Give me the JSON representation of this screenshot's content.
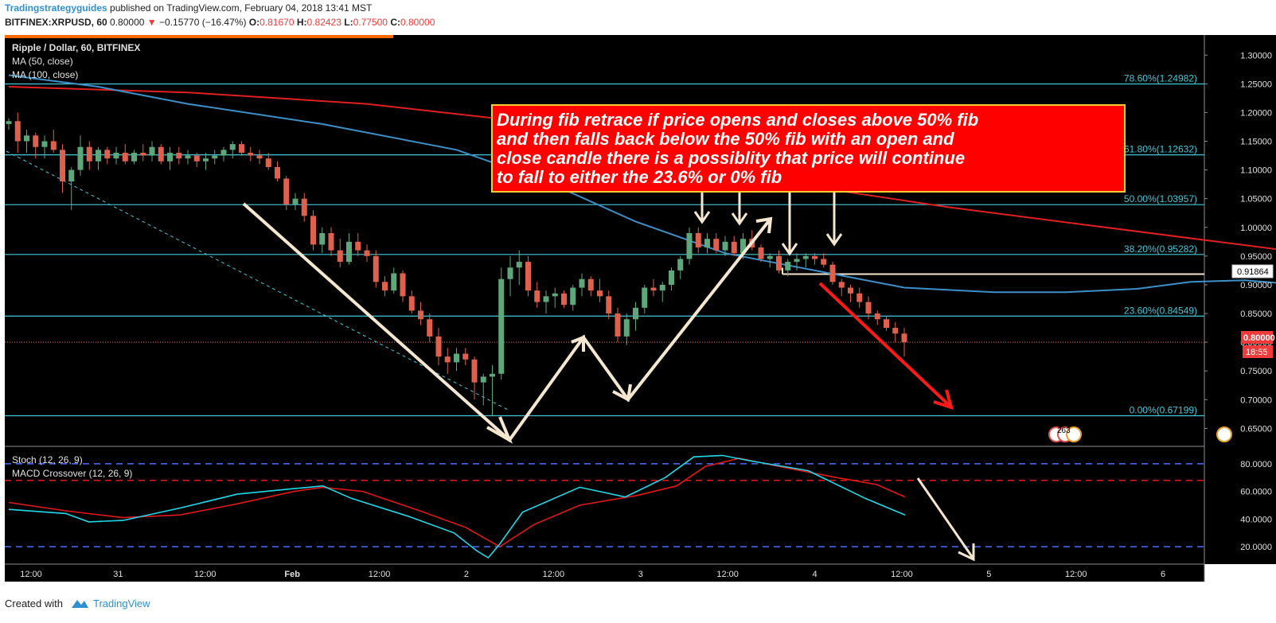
{
  "header": {
    "author": "Tradingstrategyguides",
    "published_text": "published on TradingView.com, February 04, 2018 13:41 MST",
    "symbol": "BITFINEX:XRPUSD, 60",
    "last": "0.80000",
    "change": "−0.15770 (−16.47%)",
    "o_label": "O:",
    "o_val": "0.81670",
    "h_label": "H:",
    "h_val": "0.82423",
    "l_label": "L:",
    "l_val": "0.77500",
    "c_label": "C:",
    "c_val": "0.80000"
  },
  "legend": {
    "title": "Ripple / Dollar, 60, BITFINEX",
    "ma50": "MA (50, close)",
    "ma100": "MA (100, close)",
    "stoch": "Stoch (12, 26, 9)",
    "macd": "MACD Crossover (12, 26, 9)"
  },
  "annotation": {
    "lines": [
      "During fib retrace if price opens and closes above 50% fib",
      "and then falls back below the 50% fib with an open and",
      "close candle there is a possiblity that price will continue",
      "to fall to either the 23.6% or 0% fib"
    ]
  },
  "price_tags": {
    "level": "0.91864",
    "last": "0.80000",
    "timer": "18:55"
  },
  "markers": {
    "events_count": "263"
  },
  "footer": {
    "created_with": "Created with",
    "brand": "TradingView"
  },
  "colors": {
    "background": "#000000",
    "fib_line": "#44c8d8",
    "ma50": "#3d8fc8",
    "ma100": "#e02020",
    "candle_up": "#5ea77d",
    "candle_down": "#e0604e",
    "stoch_k": "#22d8e8",
    "stoch_d": "#e01818",
    "arrow": "#f5e6d0",
    "arrow_red": "#ff1a1a",
    "annotation_bg": "#ff0000"
  },
  "chart_data": {
    "type": "candlestick",
    "title": "Ripple / Dollar, 60, BITFINEX",
    "price_axis": {
      "ticks": [
        "1.30000",
        "1.25000",
        "1.20000",
        "1.15000",
        "1.10000",
        "1.05000",
        "1.00000",
        "0.95000",
        "0.90000",
        "0.85000",
        "0.80000",
        "0.75000",
        "0.70000",
        "0.65000"
      ],
      "ylim": [
        0.62,
        1.335
      ]
    },
    "time_axis": {
      "labels": [
        "12:00",
        "31",
        "12:00",
        "Feb",
        "12:00",
        "2",
        "12:00",
        "3",
        "12:00",
        "4",
        "12:00",
        "5",
        "12:00",
        "6"
      ],
      "range_hours": [
        0,
        132
      ]
    },
    "fib_levels": [
      {
        "label": "78.60%(1.24982)",
        "value": 1.24982
      },
      {
        "label": "61.80%(1.12632)",
        "value": 1.12632
      },
      {
        "label": "50.00%(1.03957)",
        "value": 1.03957
      },
      {
        "label": "38.20%(0.95282)",
        "value": 0.95282
      },
      {
        "label": "23.60%(0.84549)",
        "value": 0.84549
      },
      {
        "label": "0.00%(0.67199)",
        "value": 0.67199
      }
    ],
    "horizontal_level": 0.91864,
    "last_price": 0.8,
    "ohlc": [
      [
        1.18,
        1.19,
        1.17,
        1.185
      ],
      [
        1.185,
        1.2,
        1.13,
        1.15
      ],
      [
        1.15,
        1.17,
        1.13,
        1.16
      ],
      [
        1.16,
        1.165,
        1.12,
        1.14
      ],
      [
        1.14,
        1.16,
        1.12,
        1.15
      ],
      [
        1.15,
        1.17,
        1.13,
        1.135
      ],
      [
        1.135,
        1.145,
        1.06,
        1.08
      ],
      [
        1.08,
        1.105,
        1.03,
        1.1
      ],
      [
        1.1,
        1.16,
        1.09,
        1.14
      ],
      [
        1.14,
        1.15,
        1.1,
        1.115
      ],
      [
        1.115,
        1.14,
        1.1,
        1.135
      ],
      [
        1.135,
        1.14,
        1.11,
        1.12
      ],
      [
        1.12,
        1.14,
        1.11,
        1.13
      ],
      [
        1.13,
        1.145,
        1.11,
        1.115
      ],
      [
        1.115,
        1.135,
        1.11,
        1.13
      ],
      [
        1.13,
        1.145,
        1.115,
        1.125
      ],
      [
        1.125,
        1.15,
        1.115,
        1.14
      ],
      [
        1.14,
        1.145,
        1.11,
        1.115
      ],
      [
        1.115,
        1.14,
        1.1,
        1.13
      ],
      [
        1.13,
        1.14,
        1.11,
        1.12
      ],
      [
        1.12,
        1.135,
        1.11,
        1.125
      ],
      [
        1.125,
        1.13,
        1.105,
        1.115
      ],
      [
        1.115,
        1.13,
        1.1,
        1.12
      ],
      [
        1.12,
        1.135,
        1.11,
        1.125
      ],
      [
        1.125,
        1.14,
        1.115,
        1.135
      ],
      [
        1.135,
        1.15,
        1.12,
        1.145
      ],
      [
        1.145,
        1.15,
        1.125,
        1.13
      ],
      [
        1.13,
        1.14,
        1.115,
        1.125
      ],
      [
        1.125,
        1.135,
        1.11,
        1.12
      ],
      [
        1.12,
        1.13,
        1.1,
        1.105
      ],
      [
        1.105,
        1.115,
        1.08,
        1.085
      ],
      [
        1.085,
        1.09,
        1.03,
        1.04
      ],
      [
        1.04,
        1.06,
        1.03,
        1.05
      ],
      [
        1.05,
        1.06,
        1.01,
        1.02
      ],
      [
        1.02,
        1.03,
        0.96,
        0.97
      ],
      [
        0.97,
        1.0,
        0.955,
        0.99
      ],
      [
        0.99,
        1.0,
        0.95,
        0.96
      ],
      [
        0.96,
        0.98,
        0.93,
        0.94
      ],
      [
        0.94,
        0.99,
        0.935,
        0.975
      ],
      [
        0.975,
        0.99,
        0.95,
        0.96
      ],
      [
        0.96,
        0.97,
        0.94,
        0.95
      ],
      [
        0.95,
        0.96,
        0.895,
        0.905
      ],
      [
        0.905,
        0.915,
        0.88,
        0.89
      ],
      [
        0.89,
        0.93,
        0.885,
        0.92
      ],
      [
        0.92,
        0.925,
        0.87,
        0.88
      ],
      [
        0.88,
        0.89,
        0.85,
        0.855
      ],
      [
        0.855,
        0.87,
        0.83,
        0.84
      ],
      [
        0.84,
        0.85,
        0.8,
        0.81
      ],
      [
        0.81,
        0.825,
        0.76,
        0.775
      ],
      [
        0.775,
        0.79,
        0.745,
        0.765
      ],
      [
        0.765,
        0.79,
        0.75,
        0.78
      ],
      [
        0.78,
        0.79,
        0.76,
        0.77
      ],
      [
        0.77,
        0.775,
        0.7,
        0.73
      ],
      [
        0.73,
        0.745,
        0.69,
        0.74
      ],
      [
        0.74,
        0.76,
        0.672,
        0.745
      ],
      [
        0.745,
        0.93,
        0.735,
        0.91
      ],
      [
        0.91,
        0.95,
        0.88,
        0.93
      ],
      [
        0.93,
        0.96,
        0.9,
        0.94
      ],
      [
        0.94,
        0.95,
        0.88,
        0.89
      ],
      [
        0.89,
        0.905,
        0.86,
        0.87
      ],
      [
        0.87,
        0.89,
        0.85,
        0.88
      ],
      [
        0.88,
        0.895,
        0.86,
        0.885
      ],
      [
        0.885,
        0.89,
        0.86,
        0.865
      ],
      [
        0.865,
        0.9,
        0.855,
        0.895
      ],
      [
        0.895,
        0.92,
        0.88,
        0.91
      ],
      [
        0.91,
        0.915,
        0.88,
        0.89
      ],
      [
        0.89,
        0.91,
        0.87,
        0.88
      ],
      [
        0.88,
        0.89,
        0.84,
        0.85
      ],
      [
        0.85,
        0.86,
        0.8,
        0.81
      ],
      [
        0.81,
        0.85,
        0.795,
        0.84
      ],
      [
        0.84,
        0.87,
        0.82,
        0.86
      ],
      [
        0.86,
        0.9,
        0.85,
        0.895
      ],
      [
        0.895,
        0.91,
        0.88,
        0.89
      ],
      [
        0.89,
        0.905,
        0.87,
        0.9
      ],
      [
        0.9,
        0.93,
        0.89,
        0.925
      ],
      [
        0.925,
        0.95,
        0.91,
        0.945
      ],
      [
        0.945,
        1.0,
        0.935,
        0.99
      ],
      [
        0.99,
        1.0,
        0.955,
        0.965
      ],
      [
        0.965,
        0.99,
        0.955,
        0.98
      ],
      [
        0.98,
        0.99,
        0.955,
        0.96
      ],
      [
        0.96,
        0.985,
        0.95,
        0.975
      ],
      [
        0.975,
        0.985,
        0.95,
        0.955
      ],
      [
        0.955,
        0.99,
        0.945,
        0.98
      ],
      [
        0.98,
        0.995,
        0.96,
        0.965
      ],
      [
        0.965,
        0.97,
        0.94,
        0.945
      ],
      [
        0.945,
        0.955,
        0.93,
        0.95
      ],
      [
        0.95,
        0.96,
        0.92,
        0.925
      ],
      [
        0.925,
        0.945,
        0.915,
        0.94
      ],
      [
        0.94,
        0.955,
        0.925,
        0.945
      ],
      [
        0.945,
        0.955,
        0.93,
        0.95
      ],
      [
        0.95,
        0.955,
        0.935,
        0.945
      ],
      [
        0.945,
        0.955,
        0.93,
        0.935
      ],
      [
        0.935,
        0.94,
        0.9,
        0.905
      ],
      [
        0.905,
        0.91,
        0.88,
        0.895
      ],
      [
        0.895,
        0.9,
        0.87,
        0.885
      ],
      [
        0.885,
        0.895,
        0.86,
        0.87
      ],
      [
        0.87,
        0.88,
        0.84,
        0.85
      ],
      [
        0.85,
        0.855,
        0.83,
        0.84
      ],
      [
        0.84,
        0.845,
        0.82,
        0.825
      ],
      [
        0.825,
        0.835,
        0.8,
        0.815
      ],
      [
        0.815,
        0.825,
        0.775,
        0.8
      ]
    ],
    "ma50": [
      [
        0,
        1.265
      ],
      [
        10,
        1.245
      ],
      [
        20,
        1.215
      ],
      [
        35,
        1.18
      ],
      [
        50,
        1.135
      ],
      [
        60,
        1.08
      ],
      [
        70,
        1.01
      ],
      [
        80,
        0.955
      ],
      [
        90,
        0.925
      ],
      [
        100,
        0.895
      ],
      [
        110,
        0.887
      ],
      [
        118,
        0.887
      ],
      [
        126,
        0.893
      ],
      [
        132,
        0.905
      ],
      [
        138,
        0.908
      ],
      [
        142,
        0.903
      ]
    ],
    "ma100": [
      [
        0,
        1.245
      ],
      [
        20,
        1.235
      ],
      [
        40,
        1.215
      ],
      [
        60,
        1.18
      ],
      [
        75,
        1.13
      ],
      [
        90,
        1.07
      ],
      [
        105,
        1.035
      ],
      [
        120,
        1.005
      ],
      [
        135,
        0.975
      ],
      [
        145,
        0.955
      ],
      [
        150,
        0.94
      ]
    ],
    "oscillator": {
      "ticks": [
        "80.0000",
        "60.0000",
        "40.0000",
        "20.0000"
      ],
      "ylim": [
        8,
        92
      ],
      "upper_band": 80,
      "red_band": 68,
      "lower_band": 20,
      "k_line": [
        [
          0,
          47
        ],
        [
          10,
          44
        ],
        [
          14,
          38
        ],
        [
          20,
          39
        ],
        [
          30,
          48
        ],
        [
          40,
          58
        ],
        [
          50,
          62
        ],
        [
          55,
          64
        ],
        [
          60,
          55
        ],
        [
          70,
          42
        ],
        [
          78,
          30
        ],
        [
          82,
          17
        ],
        [
          84,
          12
        ],
        [
          86,
          22
        ],
        [
          90,
          45
        ],
        [
          100,
          63
        ],
        [
          108,
          56
        ],
        [
          115,
          70
        ],
        [
          120,
          85
        ],
        [
          125,
          86
        ],
        [
          130,
          82
        ],
        [
          140,
          75
        ],
        [
          150,
          55
        ],
        [
          157,
          43
        ]
      ],
      "d_line": [
        [
          0,
          52
        ],
        [
          10,
          46
        ],
        [
          20,
          41
        ],
        [
          30,
          43
        ],
        [
          40,
          51
        ],
        [
          50,
          60
        ],
        [
          55,
          63
        ],
        [
          62,
          60
        ],
        [
          72,
          46
        ],
        [
          80,
          34
        ],
        [
          86,
          20
        ],
        [
          92,
          36
        ],
        [
          100,
          50
        ],
        [
          110,
          57
        ],
        [
          117,
          64
        ],
        [
          122,
          78
        ],
        [
          128,
          84
        ],
        [
          135,
          78
        ],
        [
          145,
          70
        ],
        [
          152,
          65
        ],
        [
          157,
          56
        ]
      ]
    }
  }
}
